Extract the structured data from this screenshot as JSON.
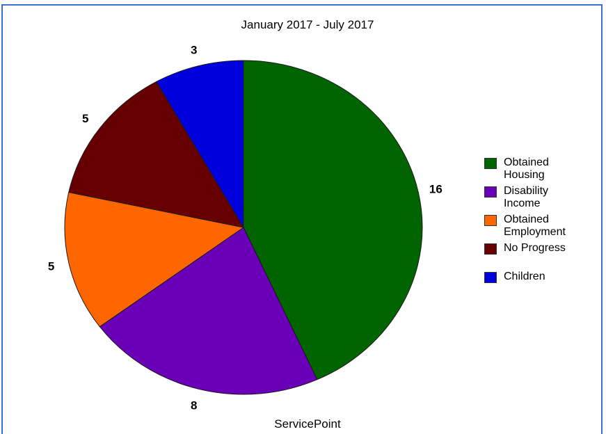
{
  "chart_data": {
    "type": "pie",
    "title": "January 2017 - July 2017",
    "footer": "ServicePoint",
    "legend_position": "right",
    "slices": [
      {
        "label": "Obtained Housing",
        "legend_text": "Obtained\nHousing",
        "value": 16,
        "value_label": "16",
        "color": "#006400"
      },
      {
        "label": "Disability Income",
        "legend_text": "Disability\nIncome",
        "value": 8,
        "value_label": "8",
        "color": "#6a00b8"
      },
      {
        "label": "Obtained Employment",
        "legend_text": "Obtained\nEmployment",
        "value": 5,
        "value_label": "5",
        "color": "#ff6600"
      },
      {
        "label": "No Progress",
        "legend_text": "No Progress",
        "value": 5,
        "value_label": "5",
        "color": "#660000"
      },
      {
        "label": "Children",
        "legend_text": "Children",
        "value": 3,
        "value_label": "3",
        "color": "#0000dd"
      }
    ]
  }
}
